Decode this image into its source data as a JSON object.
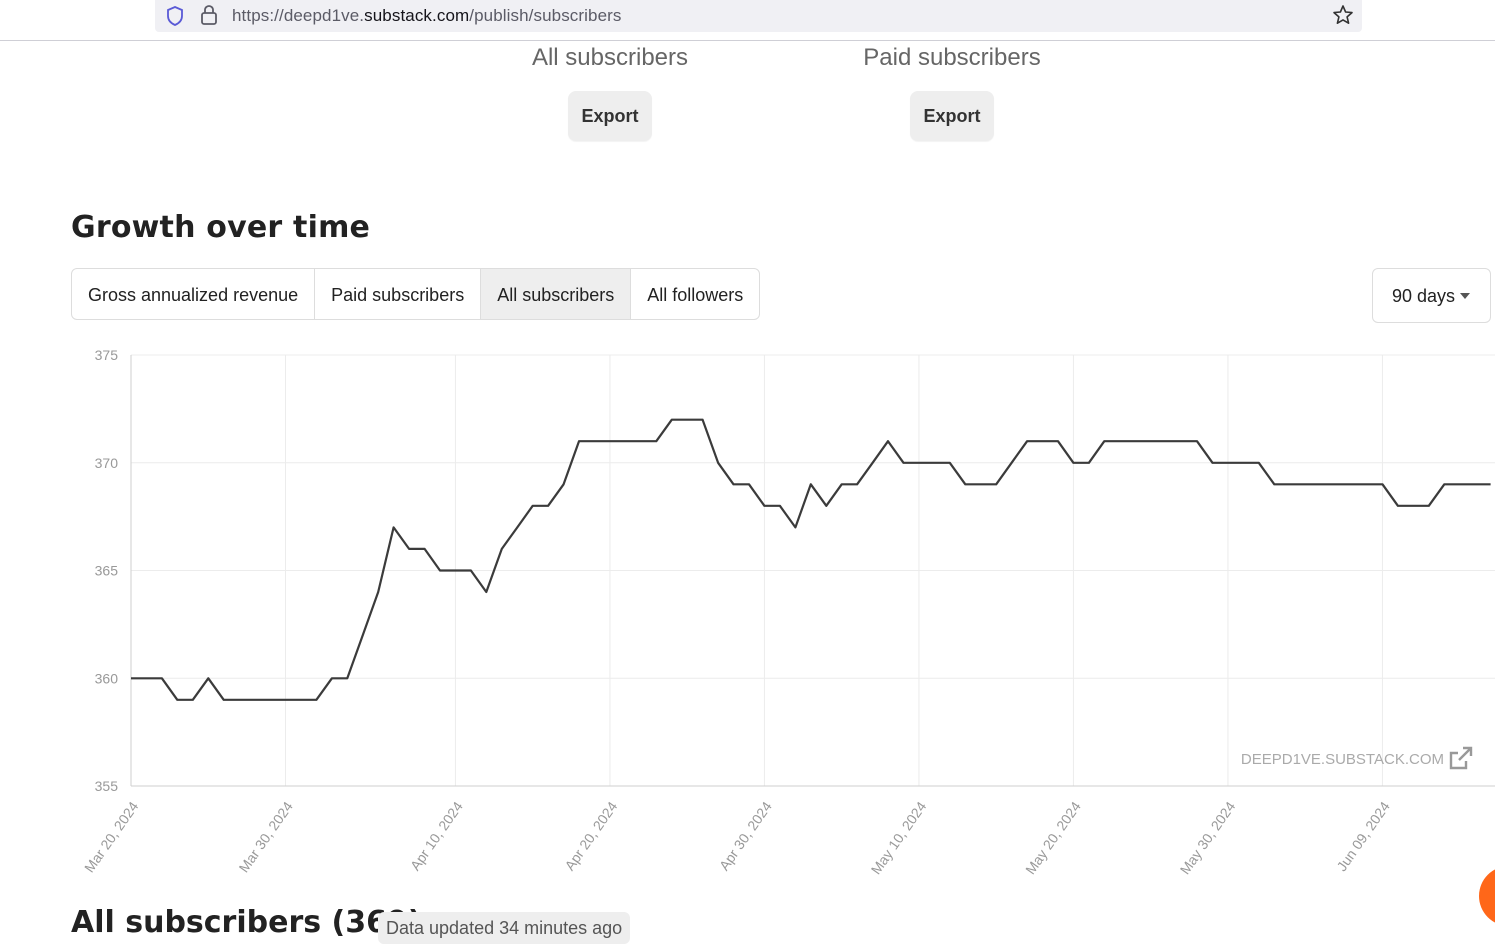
{
  "browser": {
    "url_prefix": "https://deepd1ve.",
    "url_host": "substack.com",
    "url_path": "/publish/subscribers"
  },
  "export": {
    "all": {
      "title": "All subscribers",
      "button": "Export"
    },
    "paid": {
      "title": "Paid subscribers",
      "button": "Export"
    }
  },
  "growth": {
    "heading": "Growth over time",
    "tabs": [
      {
        "label": "Gross annualized revenue",
        "active": false
      },
      {
        "label": "Paid subscribers",
        "active": false
      },
      {
        "label": "All subscribers",
        "active": true
      },
      {
        "label": "All followers",
        "active": false
      }
    ],
    "range": "90 days"
  },
  "chart_data": {
    "type": "line",
    "watermark": "DEEPD1VE.SUBSTACK.COM",
    "ylim": [
      355,
      375
    ],
    "yticks": [
      355,
      360,
      365,
      370,
      375
    ],
    "x_start": "2024-03-20",
    "xticks": [
      "Mar 20, 2024",
      "Mar 30, 2024",
      "Apr 10, 2024",
      "Apr 20, 2024",
      "Apr 30, 2024",
      "May 10, 2024",
      "May 20, 2024",
      "May 30, 2024",
      "Jun 09, 2024"
    ],
    "grid": true,
    "line_color": "#3b3b3b",
    "series": [
      {
        "values": [
          360,
          360,
          360,
          359,
          359,
          360,
          359,
          359,
          359,
          359,
          359,
          359,
          359,
          360,
          360,
          362,
          364,
          367,
          366,
          366,
          365,
          365,
          365,
          364,
          366,
          367,
          368,
          368,
          369,
          371,
          371,
          371,
          371,
          371,
          371,
          372,
          372,
          372,
          370,
          369,
          369,
          368,
          368,
          367,
          369,
          368,
          369,
          369,
          370,
          371,
          370,
          370,
          370,
          370,
          369,
          369,
          369,
          370,
          371,
          371,
          371,
          370,
          370,
          371,
          371,
          371,
          371,
          371,
          371,
          371,
          370,
          370,
          370,
          370,
          369,
          369,
          369,
          369,
          369,
          369,
          369,
          369,
          368,
          368,
          368,
          369,
          369,
          369,
          369
        ]
      }
    ]
  },
  "list": {
    "title": "All subscribers (369)",
    "updated": "Data updated 34 minutes ago"
  }
}
